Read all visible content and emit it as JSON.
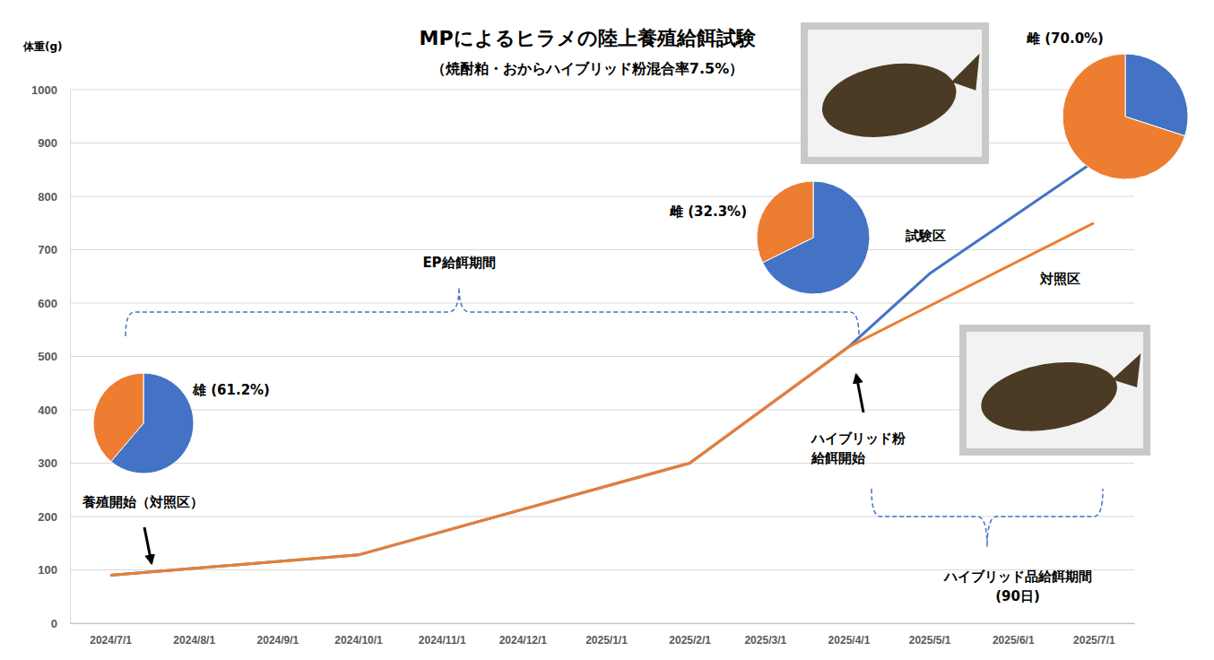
{
  "chart_data": {
    "type": "line",
    "title": "MPによるヒラメの陸上養殖給餌試験",
    "subtitle": "（焼酎粕・おからハイブリッド粉混合率7.5%）",
    "y_label": "体重(g)",
    "xlim": [
      "2024/6/16",
      "2025/7/16"
    ],
    "xticks": [
      "2024/7/1",
      "2024/8/1",
      "2024/9/1",
      "2024/10/1",
      "2024/11/1",
      "2024/12/1",
      "2025/1/1",
      "2025/2/1",
      "2025/3/1",
      "2025/4/1",
      "2025/5/1",
      "2025/6/1",
      "2025/7/1"
    ],
    "ylim": [
      0,
      1000
    ],
    "yticks": [
      0,
      100,
      200,
      300,
      400,
      500,
      600,
      700,
      800,
      900,
      1000
    ],
    "grid": true,
    "series": [
      {
        "name": "試験区",
        "color": "#4472C4",
        "x": [
          "2024/7/1",
          "2024/10/1",
          "2025/2/1",
          "2025/4/1",
          "2025/5/1",
          "2025/7/1"
        ],
        "values": [
          90,
          128,
          300,
          518,
          655,
          865
        ]
      },
      {
        "name": "対照区",
        "color": "#ED7D31",
        "x": [
          "2024/7/1",
          "2024/10/1",
          "2025/2/1",
          "2025/4/1",
          "2025/7/1"
        ],
        "values": [
          90,
          128,
          300,
          518,
          750
        ]
      }
    ],
    "pies": [
      {
        "type": "pie",
        "label": "雄 (61.2%)",
        "values": [
          61.2,
          38.8
        ],
        "colors": [
          "#4472C4",
          "#ED7D31"
        ]
      },
      {
        "type": "pie",
        "label": "雌 (32.3%)",
        "values": [
          67.7,
          32.3
        ],
        "colors": [
          "#4472C4",
          "#ED7D31"
        ]
      },
      {
        "type": "pie",
        "label": "雌 (70.0%)",
        "values": [
          30.0,
          70.0
        ],
        "colors": [
          "#4472C4",
          "#ED7D31"
        ]
      }
    ],
    "annotations": [
      {
        "text": [
          "養殖開始（対照区）"
        ]
      },
      {
        "text": [
          "EP給餌期間"
        ]
      },
      {
        "text": [
          "ハイブリッド粉",
          "給餌開始"
        ]
      },
      {
        "text": [
          "ハイブリッド品給餌期間",
          "(90日)"
        ]
      }
    ]
  }
}
